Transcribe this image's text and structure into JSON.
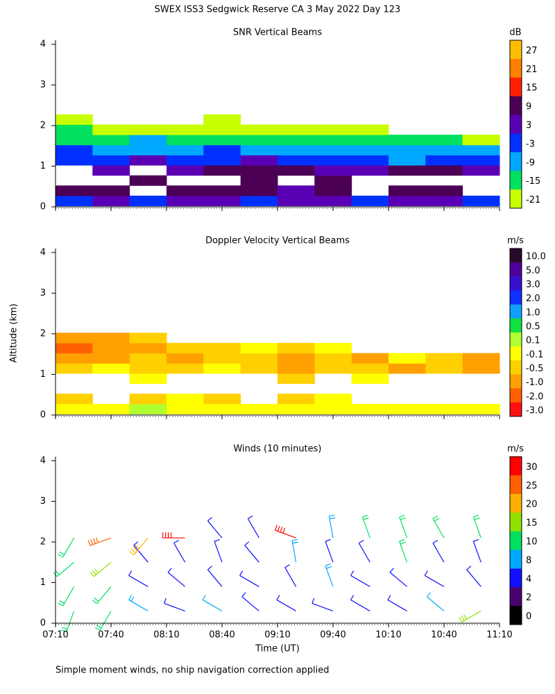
{
  "title": "SWEX ISS3 Sedgwick Reserve CA   3 May 2022 Day 123",
  "y_label": "Altitude (km)",
  "x_label": "Time (UT)",
  "footnote": "Simple moment winds, no ship navigation correction applied",
  "chart_data": [
    {
      "type": "heatmap",
      "title": "SNR Vertical Beams",
      "xlim": [
        430,
        670
      ],
      "ylim": [
        0,
        4.1
      ],
      "yticks": [
        0,
        1,
        2,
        3,
        4
      ],
      "x": [
        440,
        460,
        480,
        500,
        520,
        540,
        560,
        580,
        600,
        620,
        640,
        660
      ],
      "altitudes": [
        0.15,
        0.4,
        0.65,
        0.9,
        1.15,
        1.4,
        1.65,
        1.9,
        2.15
      ],
      "z": [
        [
          -3,
          3,
          -3,
          3,
          3,
          -3,
          3,
          3,
          -3,
          3,
          3,
          -3
        ],
        [
          9,
          9,
          null,
          9,
          9,
          9,
          3,
          9,
          null,
          9,
          9,
          null
        ],
        [
          null,
          null,
          9,
          null,
          null,
          9,
          null,
          9,
          null,
          null,
          null,
          null
        ],
        [
          null,
          3,
          null,
          3,
          9,
          9,
          9,
          3,
          3,
          9,
          9,
          3
        ],
        [
          -3,
          -3,
          3,
          -3,
          -3,
          3,
          -3,
          -3,
          -3,
          -9,
          -3,
          -3
        ],
        [
          -3,
          -9,
          -9,
          -9,
          -3,
          -9,
          -9,
          -9,
          -9,
          -9,
          -9,
          -9
        ],
        [
          -15,
          -15,
          -9,
          -15,
          -15,
          -15,
          -15,
          -15,
          -15,
          -15,
          -15,
          -21
        ],
        [
          -15,
          -21,
          -21,
          -21,
          -21,
          -21,
          -21,
          -21,
          -21,
          null,
          null,
          null
        ],
        [
          -21,
          null,
          null,
          null,
          -21,
          null,
          null,
          null,
          null,
          null,
          null,
          null
        ]
      ],
      "colorbar": {
        "unit": "dB",
        "ticks": [
          27,
          21,
          15,
          9,
          3,
          -3,
          -9,
          -15,
          -21
        ],
        "colors": [
          "#ffbf00",
          "#ff8000",
          "#ff2000",
          "#4b0055",
          "#5a00b4",
          "#0030ff",
          "#00a8ff",
          "#00e060",
          "#c8ff00"
        ]
      }
    },
    {
      "type": "heatmap",
      "title": "Doppler Velocity Vertical Beams",
      "xlim": [
        430,
        670
      ],
      "ylim": [
        0,
        4.1
      ],
      "yticks": [
        0,
        1,
        2,
        3,
        4
      ],
      "x": [
        440,
        460,
        480,
        500,
        520,
        540,
        560,
        580,
        600,
        620,
        640,
        660
      ],
      "altitudes": [
        0.15,
        0.4,
        0.65,
        0.9,
        1.15,
        1.4,
        1.65,
        1.9,
        2.15
      ],
      "z": [
        [
          -0.1,
          -0.1,
          0.1,
          -0.1,
          -0.1,
          -0.1,
          -0.1,
          -0.1,
          -0.1,
          -0.1,
          -0.1,
          -0.1
        ],
        [
          -0.5,
          null,
          -0.5,
          -0.1,
          -0.5,
          null,
          -0.5,
          -0.1,
          null,
          null,
          null,
          null
        ],
        [
          null,
          null,
          null,
          null,
          null,
          null,
          null,
          null,
          null,
          null,
          null,
          null
        ],
        [
          null,
          null,
          -0.1,
          null,
          null,
          null,
          -0.5,
          null,
          -0.1,
          null,
          null,
          null
        ],
        [
          -0.5,
          -0.1,
          -0.5,
          -0.5,
          -0.1,
          -0.5,
          -1,
          -0.5,
          -0.5,
          -1,
          -0.5,
          -1
        ],
        [
          -1,
          -1,
          -0.5,
          -1,
          -0.5,
          -0.5,
          -1,
          -0.5,
          -1,
          -0.1,
          -0.5,
          -1
        ],
        [
          -2,
          -1,
          -1,
          -0.5,
          -0.5,
          -0.1,
          -0.5,
          -0.1,
          null,
          null,
          null,
          null
        ],
        [
          -1,
          -1,
          -0.5,
          null,
          null,
          null,
          null,
          null,
          null,
          null,
          null,
          null
        ],
        [
          null,
          null,
          null,
          null,
          null,
          null,
          null,
          null,
          null,
          null,
          null,
          null
        ]
      ],
      "colorbar": {
        "unit": "m/s",
        "ticks": [
          {
            "value": 10,
            "label": "10.0"
          },
          {
            "value": 5,
            "label": "5.0"
          },
          {
            "value": 3,
            "label": "3.0"
          },
          {
            "value": 2,
            "label": "2.0"
          },
          {
            "value": 1,
            "label": "1.0"
          },
          0.5,
          0.1,
          -0.1,
          -0.5,
          {
            "value": -1,
            "label": "-1.0"
          },
          {
            "value": -2,
            "label": "-2.0"
          },
          {
            "value": -3,
            "label": "-3.0"
          }
        ],
        "colors": [
          "#2a0a2a",
          "#50009a",
          "#3a10d0",
          "#1030ff",
          "#10a0ff",
          "#10e040",
          "#b0ff30",
          "#ffff00",
          "#ffd000",
          "#ffa000",
          "#ff6000",
          "#ff1010"
        ]
      }
    },
    {
      "type": "barbs",
      "title": "Winds (10 minutes)",
      "xlim": [
        430,
        670
      ],
      "ylim": [
        0,
        4.1
      ],
      "yticks": [
        0,
        1,
        2,
        3,
        4
      ],
      "xticks": [
        {
          "value": 430,
          "label": "07:10"
        },
        {
          "value": 460,
          "label": "07:40"
        },
        {
          "value": 490,
          "label": "08:10"
        },
        {
          "value": 520,
          "label": "08:40"
        },
        {
          "value": 550,
          "label": "09:10"
        },
        {
          "value": 580,
          "label": "09:40"
        },
        {
          "value": 610,
          "label": "10:10"
        },
        {
          "value": 640,
          "label": "10:40"
        },
        {
          "value": 670,
          "label": "11:10"
        }
      ],
      "x": [
        440,
        460,
        480,
        500,
        520,
        540,
        560,
        580,
        600,
        620,
        640,
        660,
        440,
        460,
        480,
        500,
        520,
        540,
        560,
        580,
        600,
        620,
        640,
        660,
        440,
        460,
        480,
        500,
        520,
        540,
        560,
        580,
        600,
        620,
        640,
        660,
        440,
        460,
        480,
        500,
        520,
        540,
        560,
        580,
        600,
        620,
        640,
        660
      ],
      "altitudes": [
        0.3,
        0.3,
        0.3,
        0.3,
        0.3,
        0.3,
        0.3,
        0.3,
        0.3,
        0.3,
        0.3,
        0.3,
        0.9,
        0.9,
        0.9,
        0.9,
        0.9,
        0.9,
        0.9,
        0.9,
        0.9,
        0.9,
        0.9,
        0.9,
        1.5,
        1.5,
        1.5,
        1.5,
        1.5,
        1.5,
        1.5,
        1.5,
        1.5,
        1.5,
        1.5,
        1.5,
        2.1,
        2.1,
        2.1,
        2.1,
        2.1,
        2.1,
        2.1,
        2.1,
        2.1,
        2.1,
        2.1,
        2.1
      ],
      "speed": [
        12,
        9,
        8,
        4,
        6,
        5,
        4,
        4,
        3,
        4,
        6,
        15,
        10,
        12,
        4,
        4,
        4,
        4,
        4,
        8,
        4,
        4,
        4,
        4,
        12,
        15,
        4,
        4,
        4,
        4,
        8,
        4,
        4,
        10,
        4,
        4,
        10,
        25,
        18,
        30,
        4,
        4,
        28,
        8,
        12,
        12,
        10,
        12
      ],
      "direction": [
        200,
        210,
        300,
        290,
        300,
        310,
        300,
        290,
        300,
        300,
        310,
        240,
        210,
        220,
        300,
        310,
        320,
        300,
        330,
        340,
        300,
        310,
        300,
        320,
        230,
        230,
        320,
        330,
        340,
        320,
        350,
        340,
        330,
        340,
        330,
        340,
        210,
        250,
        220,
        270,
        320,
        330,
        290,
        350,
        340,
        340,
        330,
        340
      ],
      "colorbar": {
        "unit": "m/s",
        "ticks": [
          30,
          25,
          20,
          15,
          10,
          8,
          4,
          2,
          0
        ],
        "colors": [
          "#ff0000",
          "#ff6000",
          "#ffb000",
          "#90e000",
          "#00e060",
          "#00a8ff",
          "#1010ff",
          "#4b0070",
          "#000000"
        ]
      }
    }
  ]
}
